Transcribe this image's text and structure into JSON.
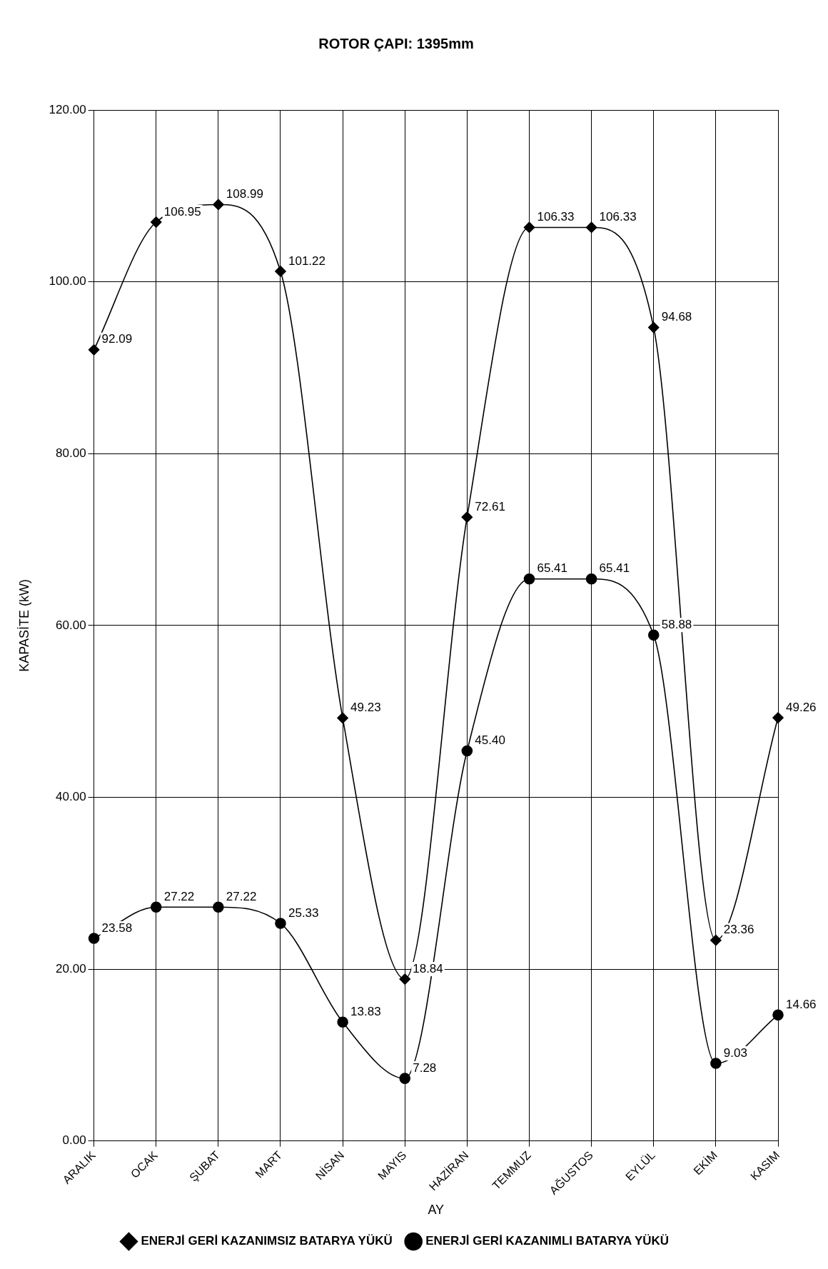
{
  "chart_data": {
    "type": "line",
    "title": "ROTOR ÇAPI: 1395mm",
    "xlabel": "AY",
    "ylabel": "KAPASİTE (kW)",
    "categories": [
      "ARALIK",
      "OCAK",
      "ŞUBAT",
      "MART",
      "NİSAN",
      "MAYIS",
      "HAZİRAN",
      "TEMMUZ",
      "AĞUSTOS",
      "EYLÜL",
      "EKİM",
      "KASIM"
    ],
    "series": [
      {
        "name": "ENERJİ GERİ KAZANIMSIZ BATARYA YÜKÜ",
        "color": "#000000",
        "marker": "diamond",
        "values": [
          92.09,
          106.95,
          108.99,
          101.22,
          49.23,
          18.84,
          72.61,
          106.33,
          106.33,
          94.68,
          23.36,
          49.26
        ],
        "value_labels": [
          "92.09",
          "106.95",
          "108.99",
          "101.22",
          "49.23",
          "18.84",
          "72.61",
          "106.33",
          "106.33",
          "94.68",
          "23.36",
          "49.26"
        ]
      },
      {
        "name": "ENERJİ GERİ KAZANIMLI BATARYA YÜKÜ",
        "color": "#000000",
        "marker": "circle",
        "values": [
          23.58,
          27.22,
          27.22,
          25.33,
          13.83,
          7.28,
          45.4,
          65.41,
          65.41,
          58.88,
          9.03,
          14.66
        ],
        "value_labels": [
          "23.58",
          "27.22",
          "27.22",
          "25.33",
          "13.83",
          "7.28",
          "45.40",
          "65.41",
          "65.41",
          "58.88",
          "9.03",
          "14.66"
        ]
      }
    ],
    "ylim": [
      0,
      120
    ],
    "yticks": [
      {
        "value": 0,
        "label": "0.00"
      },
      {
        "value": 20,
        "label": "20.00"
      },
      {
        "value": 40,
        "label": "40.00"
      },
      {
        "value": 60,
        "label": "60.00"
      },
      {
        "value": 80,
        "label": "80.00"
      },
      {
        "value": 100,
        "label": "100.00"
      },
      {
        "value": 120,
        "label": "120.00"
      }
    ],
    "grid": true,
    "legend": "bottom",
    "line_style": "solid"
  }
}
